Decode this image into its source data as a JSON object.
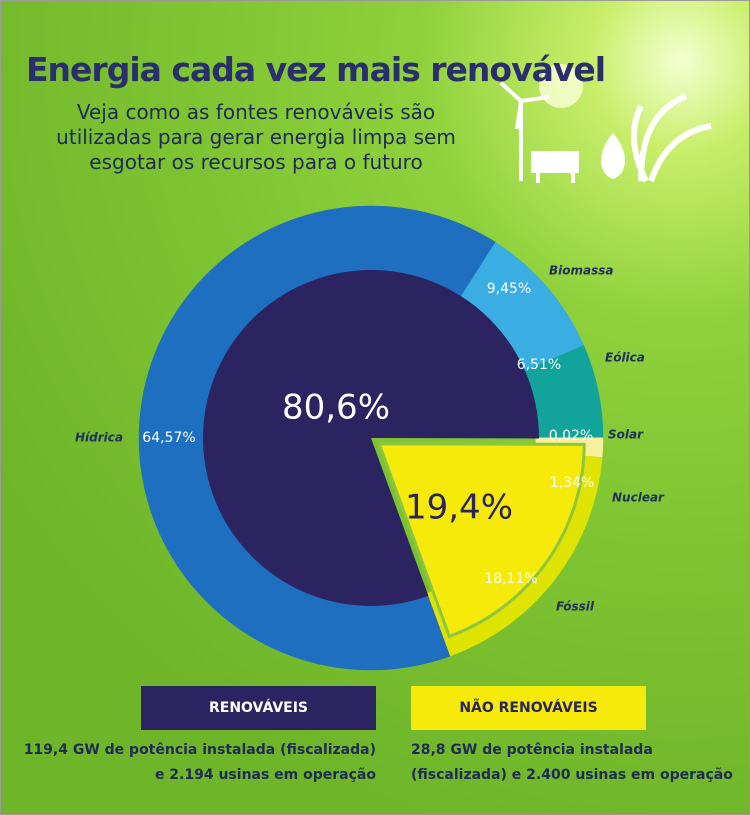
{
  "chart_data": {
    "type": "donut",
    "title": "Energia cada vez mais renovável",
    "subtitle": [
      "Veja como as fontes renováveis são",
      "utilizadas para gerar energia limpa sem",
      "esgotar os recursos para o futuro"
    ],
    "categories": [
      "Hídrica",
      "Biomassa",
      "Eólica",
      "Solar",
      "Nuclear",
      "Fóssil"
    ],
    "values": [
      64.57,
      9.45,
      6.51,
      0.02,
      1.34,
      18.11
    ],
    "value_labels": [
      "64,57%",
      "9,45%",
      "6,51%",
      "0,02%",
      "1,34%",
      "18,11%"
    ],
    "colors": [
      "#1f6fc1",
      "#3aaee2",
      "#12a39a",
      "#a9d4d6",
      "#f6ef9c",
      "#dfe300"
    ],
    "groups": {
      "categories": [
        "RENOVÁVEIS",
        "NÃO RENOVÁVEIS"
      ],
      "values": [
        80.6,
        19.4
      ],
      "value_labels": [
        "80,6%",
        "19,4%"
      ],
      "colors": [
        "#2b2460",
        "#f5ea0a"
      ],
      "descriptions": [
        [
          "119,4 GW de potência instalada (fiscalizada)",
          "e 2.194 usinas em operação"
        ],
        [
          "28,8 GW de potência instalada",
          "(fiscalizada) e  2.400 usinas em operação"
        ]
      ]
    }
  }
}
